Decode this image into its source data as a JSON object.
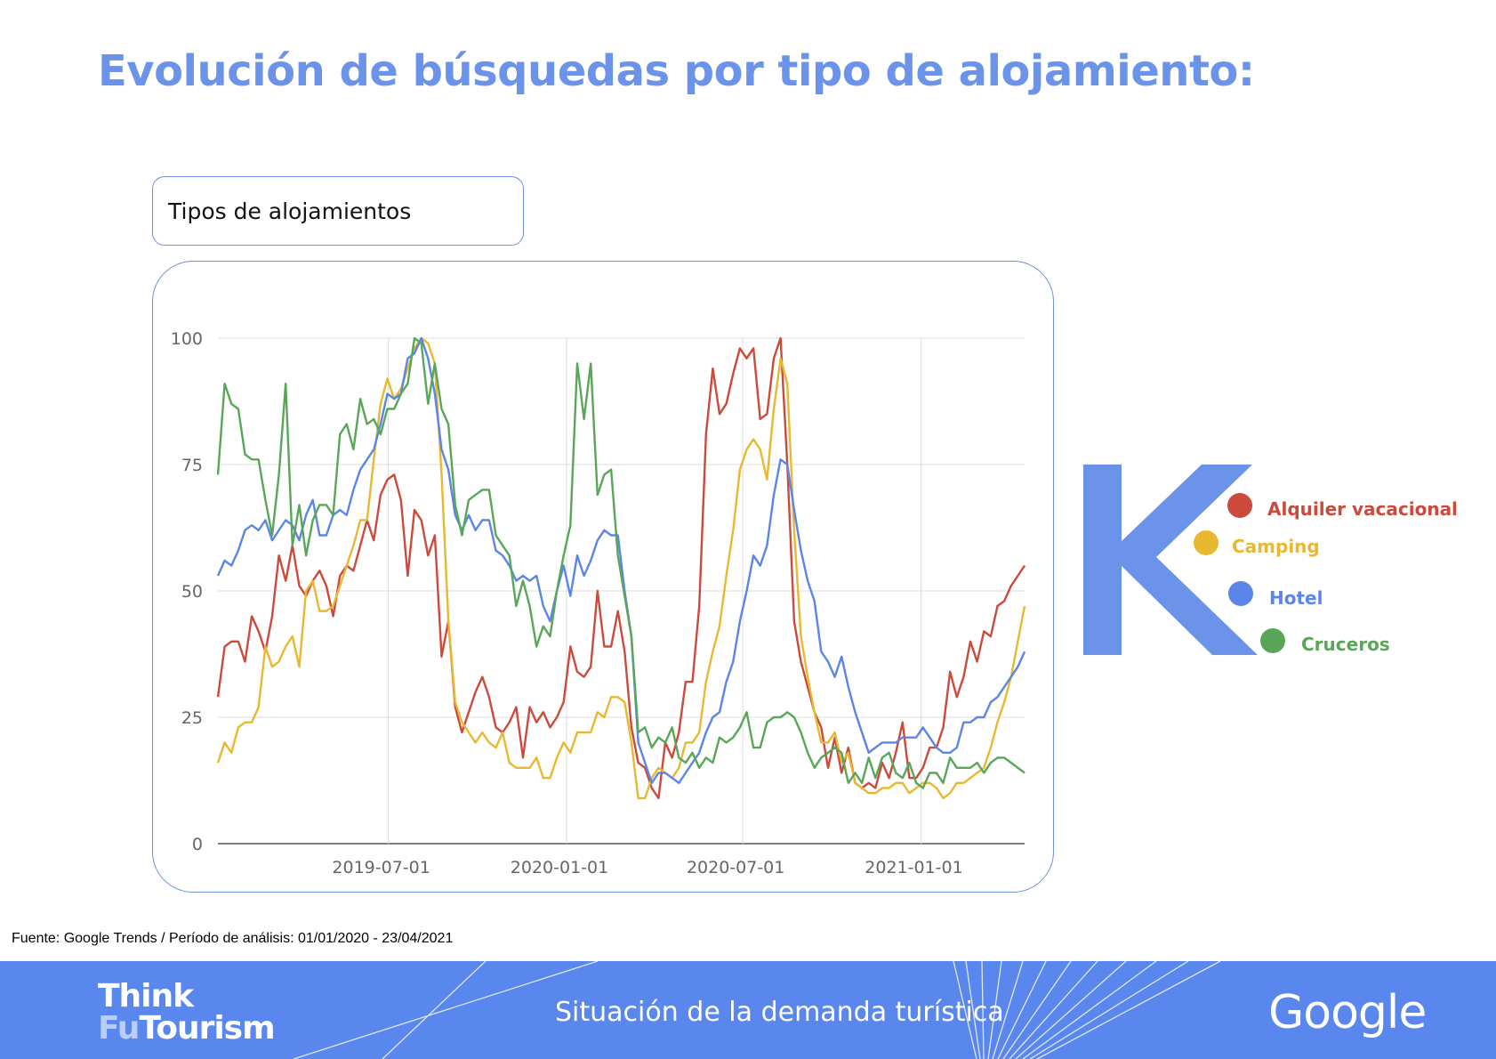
{
  "header": {
    "title": "Evolución de búsquedas por tipo de alojamiento:",
    "subtitle": "Tipos de alojamientos"
  },
  "chart_data": {
    "type": "line",
    "title": "",
    "xlabel": "",
    "ylabel": "",
    "ylim": [
      0,
      100
    ],
    "yticks": [
      "0",
      "25",
      "50",
      "75",
      "100"
    ],
    "xticks": [
      "2019-07-01",
      "2020-01-01",
      "2020-07-01",
      "2021-01-01"
    ],
    "xlim": [
      "2019-01-06",
      "2021-04-18"
    ],
    "grid": true,
    "legend_position": "right",
    "x": [
      "2019-01-06",
      "2019-01-13",
      "2019-01-20",
      "2019-01-27",
      "2019-02-03",
      "2019-02-10",
      "2019-02-17",
      "2019-02-24",
      "2019-03-03",
      "2019-03-10",
      "2019-03-17",
      "2019-03-24",
      "2019-03-31",
      "2019-04-07",
      "2019-04-14",
      "2019-04-21",
      "2019-04-28",
      "2019-05-05",
      "2019-05-12",
      "2019-05-19",
      "2019-05-26",
      "2019-06-02",
      "2019-06-09",
      "2019-06-16",
      "2019-06-23",
      "2019-06-30",
      "2019-07-07",
      "2019-07-14",
      "2019-07-21",
      "2019-07-28",
      "2019-08-04",
      "2019-08-11",
      "2019-08-18",
      "2019-08-25",
      "2019-09-01",
      "2019-09-08",
      "2019-09-15",
      "2019-09-22",
      "2019-09-29",
      "2019-10-06",
      "2019-10-13",
      "2019-10-20",
      "2019-10-27",
      "2019-11-03",
      "2019-11-10",
      "2019-11-17",
      "2019-11-24",
      "2019-12-01",
      "2019-12-08",
      "2019-12-15",
      "2019-12-22",
      "2019-12-29",
      "2020-01-05",
      "2020-01-12",
      "2020-01-19",
      "2020-01-26",
      "2020-02-02",
      "2020-02-09",
      "2020-02-16",
      "2020-02-23",
      "2020-03-01",
      "2020-03-08",
      "2020-03-15",
      "2020-03-22",
      "2020-03-29",
      "2020-04-05",
      "2020-04-12",
      "2020-04-19",
      "2020-04-26",
      "2020-05-03",
      "2020-05-10",
      "2020-05-17",
      "2020-05-24",
      "2020-05-31",
      "2020-06-07",
      "2020-06-14",
      "2020-06-21",
      "2020-06-28",
      "2020-07-05",
      "2020-07-12",
      "2020-07-19",
      "2020-07-26",
      "2020-08-02",
      "2020-08-09",
      "2020-08-16",
      "2020-08-23",
      "2020-08-30",
      "2020-09-06",
      "2020-09-13",
      "2020-09-20",
      "2020-09-27",
      "2020-10-04",
      "2020-10-11",
      "2020-10-18",
      "2020-10-25",
      "2020-11-01",
      "2020-11-08",
      "2020-11-15",
      "2020-11-22",
      "2020-11-29",
      "2020-12-06",
      "2020-12-13",
      "2020-12-20",
      "2020-12-27",
      "2021-01-03",
      "2021-01-10",
      "2021-01-17",
      "2021-01-24",
      "2021-01-31",
      "2021-02-07",
      "2021-02-14",
      "2021-02-21",
      "2021-02-28",
      "2021-03-07",
      "2021-03-14",
      "2021-03-21",
      "2021-03-28",
      "2021-04-04",
      "2021-04-11",
      "2021-04-18"
    ],
    "series": [
      {
        "name": "Alquiler vacacional",
        "color": "#cc4a3c",
        "values": [
          29,
          39,
          40,
          40,
          36,
          45,
          42,
          38,
          45,
          57,
          52,
          59,
          51,
          49,
          52,
          54,
          51,
          45,
          53,
          55,
          54,
          59,
          64,
          60,
          69,
          72,
          73,
          68,
          53,
          66,
          64,
          57,
          61,
          37,
          44,
          27,
          22,
          26,
          30,
          33,
          29,
          23,
          22,
          24,
          27,
          17,
          27,
          24,
          26,
          23,
          25,
          28,
          39,
          34,
          33,
          35,
          50,
          39,
          39,
          46,
          38,
          23,
          16,
          15,
          11,
          9,
          20,
          17,
          22,
          32,
          32,
          47,
          81,
          94,
          85,
          87,
          93,
          98,
          96,
          98,
          84,
          85,
          96,
          100,
          75,
          44,
          36,
          31,
          26,
          23,
          15,
          21,
          14,
          19,
          12,
          11,
          12,
          11,
          16,
          13,
          18,
          24,
          13,
          13,
          15,
          19,
          19,
          23,
          34,
          29,
          33,
          40,
          36,
          42,
          41,
          47,
          48,
          51,
          53,
          55
        ]
      },
      {
        "name": "Camping",
        "color": "#e8b831",
        "values": [
          16,
          20,
          18,
          23,
          24,
          24,
          27,
          39,
          35,
          36,
          39,
          41,
          35,
          50,
          52,
          46,
          46,
          47,
          51,
          55,
          59,
          64,
          64,
          76,
          87,
          92,
          88,
          90,
          94,
          98,
          100,
          99,
          95,
          73,
          44,
          28,
          24,
          22,
          20,
          22,
          20,
          19,
          22,
          16,
          15,
          15,
          15,
          17,
          13,
          13,
          17,
          20,
          18,
          22,
          22,
          22,
          26,
          25,
          29,
          29,
          28,
          20,
          9,
          9,
          13,
          15,
          14,
          13,
          15,
          20,
          20,
          22,
          32,
          38,
          43,
          53,
          62,
          74,
          78,
          80,
          78,
          72,
          86,
          96,
          91,
          62,
          41,
          33,
          26,
          20,
          20,
          22,
          16,
          18,
          12,
          11,
          10,
          10,
          11,
          11,
          12,
          12,
          10,
          11,
          12,
          12,
          11,
          9,
          10,
          12,
          12,
          13,
          14,
          15,
          19,
          24,
          28,
          33,
          40,
          47
        ]
      },
      {
        "name": "Hotel",
        "color": "#5b85e8",
        "values": [
          53,
          56,
          55,
          58,
          62,
          63,
          62,
          64,
          60,
          62,
          64,
          63,
          60,
          65,
          68,
          61,
          61,
          65,
          66,
          65,
          70,
          74,
          76,
          78,
          83,
          89,
          88,
          89,
          96,
          97,
          100,
          96,
          89,
          78,
          74,
          65,
          62,
          65,
          62,
          64,
          64,
          58,
          57,
          55,
          52,
          53,
          52,
          53,
          47,
          44,
          50,
          55,
          49,
          57,
          53,
          56,
          60,
          62,
          61,
          61,
          50,
          41,
          20,
          16,
          12,
          14,
          14,
          13,
          12,
          14,
          16,
          18,
          22,
          25,
          26,
          32,
          36,
          44,
          50,
          57,
          55,
          59,
          69,
          76,
          75,
          66,
          58,
          52,
          48,
          38,
          36,
          33,
          37,
          31,
          26,
          22,
          18,
          19,
          20,
          20,
          20,
          21,
          21,
          21,
          23,
          21,
          19,
          18,
          18,
          19,
          24,
          24,
          25,
          25,
          28,
          29,
          31,
          33,
          35,
          38
        ]
      },
      {
        "name": "Cruceros",
        "color": "#5aa659",
        "values": [
          73,
          91,
          87,
          86,
          77,
          76,
          76,
          68,
          61,
          73,
          91,
          59,
          67,
          57,
          64,
          67,
          67,
          65,
          81,
          83,
          78,
          88,
          83,
          84,
          81,
          86,
          86,
          89,
          91,
          100,
          99,
          87,
          95,
          86,
          83,
          67,
          61,
          68,
          69,
          70,
          70,
          61,
          59,
          57,
          47,
          52,
          47,
          39,
          43,
          41,
          50,
          57,
          63,
          95,
          84,
          95,
          69,
          73,
          74,
          57,
          49,
          41,
          22,
          23,
          19,
          21,
          20,
          23,
          17,
          16,
          18,
          15,
          17,
          16,
          21,
          20,
          21,
          23,
          26,
          19,
          19,
          24,
          25,
          25,
          26,
          25,
          22,
          18,
          15,
          17,
          18,
          19,
          18,
          12,
          14,
          12,
          17,
          13,
          17,
          18,
          14,
          13,
          16,
          12,
          11,
          14,
          14,
          12,
          17,
          15,
          15,
          15,
          16,
          14,
          16,
          17,
          17,
          16,
          15,
          14
        ]
      }
    ]
  },
  "legend": {
    "logo_letter": "K",
    "items": [
      {
        "label": "Alquiler vacacional",
        "color": "#cc4a3c"
      },
      {
        "label": "Camping",
        "color": "#e8b831"
      },
      {
        "label": "Hotel",
        "color": "#5b85e8"
      },
      {
        "label": "Cruceros",
        "color": "#5aa659"
      }
    ]
  },
  "source_note": "Fuente: Google Trends / Período de análisis: 01/01/2020 - 23/04/2021",
  "footer": {
    "brand_line1": "Think",
    "brand_line2_a": "Fu",
    "brand_line2_b": "Tourism",
    "center_text": "Situación de la demanda turística",
    "right_logo": "Google",
    "background_color": "#5a87ee"
  },
  "colors": {
    "title": "#6b93ea",
    "frame_border": "#6b8fd8"
  }
}
